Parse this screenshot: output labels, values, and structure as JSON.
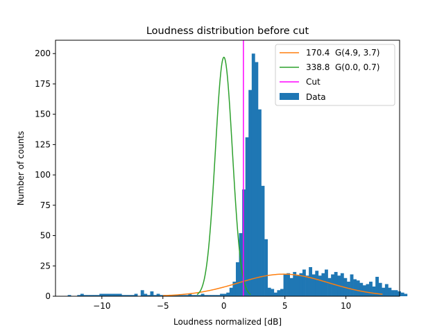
{
  "chart_data": {
    "type": "bar",
    "title": "Loudness distribution before cut",
    "xlabel": "Loudness normalized [dB]",
    "ylabel": "Number of counts",
    "xlim": [
      -13.8,
      14.4
    ],
    "ylim": [
      0,
      211
    ],
    "xticks": [
      -10,
      -5,
      0,
      5,
      10
    ],
    "xtick_labels": [
      "−10",
      "−5",
      "0",
      "5",
      "10"
    ],
    "yticks": [
      0,
      25,
      50,
      75,
      100,
      125,
      150,
      175,
      200
    ],
    "grid": false,
    "legend_position": "top-right",
    "colors": {
      "data": "#1f77b4",
      "fit_wide": "#ff7f0e",
      "fit_narrow": "#2ca02c",
      "cut": "#ff00ff"
    },
    "histogram": {
      "name": "Data",
      "bin_start": -12.8,
      "bin_width": 0.26,
      "counts": [
        1,
        0,
        0,
        1,
        2,
        1,
        1,
        1,
        1,
        1,
        2,
        2,
        2,
        2,
        2,
        2,
        2,
        1,
        1,
        1,
        1,
        2,
        0,
        5,
        2,
        1,
        4,
        1,
        2,
        1,
        1,
        0,
        1,
        1,
        1,
        1,
        1,
        1,
        2,
        1,
        1,
        1,
        2,
        1,
        1,
        1,
        1,
        1,
        2,
        2,
        3,
        7,
        12,
        28,
        52,
        88,
        131,
        170,
        200,
        193,
        154,
        91,
        47,
        7,
        6,
        3,
        5,
        6,
        18,
        19,
        15,
        20,
        17,
        19,
        22,
        17,
        24,
        18,
        21,
        17,
        19,
        22,
        15,
        18,
        20,
        17,
        19,
        15,
        12,
        18,
        14,
        13,
        11,
        9,
        10,
        12,
        8,
        16,
        11,
        7,
        10,
        7,
        5,
        5,
        4,
        3,
        2
      ]
    },
    "series": [
      {
        "name": "170.4  G(4.9, 3.7)",
        "kind": "gaussian",
        "amplitude": 18.2,
        "mean": 4.9,
        "sigma": 3.7,
        "x_range": [
          -5.0,
          13.0
        ]
      },
      {
        "name": "338.8  G(0.0, 0.7)",
        "kind": "gaussian",
        "amplitude": 197.0,
        "mean": 0.0,
        "sigma": 0.7,
        "x_range": [
          -2.2,
          2.2
        ]
      },
      {
        "name": "Cut",
        "kind": "vline",
        "x": 1.6
      }
    ]
  }
}
